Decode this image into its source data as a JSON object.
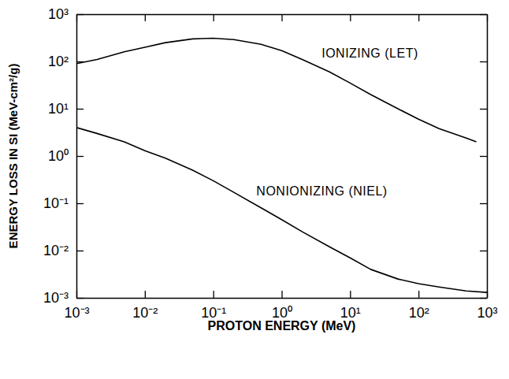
{
  "chart_data": {
    "type": "line",
    "xlabel": "PROTON ENERGY (MeV)",
    "ylabel": "ENERGY LOSS IN SI (MeV-cm²/g)",
    "log": true,
    "grid": false,
    "xlim": [
      0.001,
      1000
    ],
    "ylim": [
      0.001,
      1000
    ],
    "xticks": [
      {
        "value": 0.001,
        "label": "10⁻³"
      },
      {
        "value": 0.01,
        "label": "10⁻²"
      },
      {
        "value": 0.1,
        "label": "10⁻¹"
      },
      {
        "value": 1,
        "label": "10⁰"
      },
      {
        "value": 10,
        "label": "10¹"
      },
      {
        "value": 100,
        "label": "10²"
      },
      {
        "value": 1000,
        "label": "10³"
      }
    ],
    "yticks": [
      {
        "value": 0.001,
        "label": "10⁻³"
      },
      {
        "value": 0.01,
        "label": "10⁻²"
      },
      {
        "value": 0.1,
        "label": "10⁻¹"
      },
      {
        "value": 1,
        "label": "10⁰"
      },
      {
        "value": 10,
        "label": "10¹"
      },
      {
        "value": 100,
        "label": "10²"
      },
      {
        "value": 1000,
        "label": "10³"
      }
    ],
    "series": [
      {
        "name": "IONIZING (LET)",
        "color": "#000000",
        "x": [
          0.001,
          0.002,
          0.005,
          0.01,
          0.02,
          0.05,
          0.1,
          0.2,
          0.5,
          1,
          2,
          5,
          10,
          20,
          50,
          100,
          200,
          500,
          700
        ],
        "values": [
          90,
          110,
          160,
          200,
          250,
          300,
          310,
          290,
          230,
          170,
          110,
          60,
          35,
          20,
          10,
          6,
          3.8,
          2.4,
          2
        ]
      },
      {
        "name": "NONIONIZING (NIEL)",
        "color": "#000000",
        "x": [
          0.001,
          0.002,
          0.005,
          0.01,
          0.02,
          0.05,
          0.1,
          0.2,
          0.5,
          1,
          2,
          5,
          10,
          20,
          50,
          100,
          200,
          500,
          1000
        ],
        "values": [
          4,
          3,
          2,
          1.3,
          0.9,
          0.5,
          0.3,
          0.17,
          0.08,
          0.045,
          0.025,
          0.012,
          0.007,
          0.004,
          0.0025,
          0.002,
          0.0017,
          0.0014,
          0.0013
        ]
      }
    ]
  }
}
